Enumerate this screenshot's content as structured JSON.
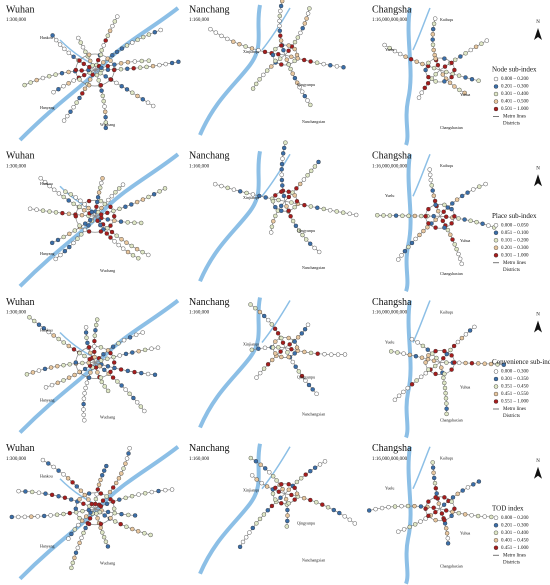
{
  "north": "N",
  "rows": [
    {
      "legend": {
        "title": "Node sub-index",
        "items": [
          {
            "label": "0.000 – 0.200",
            "color": "#ffffff"
          },
          {
            "label": "0.201 – 0.300",
            "color": "#3b6ea8"
          },
          {
            "label": "0.301 – 0.400",
            "color": "#dfe7c6"
          },
          {
            "label": "0.401 – 0.500",
            "color": "#e8c79f"
          },
          {
            "label": "0.501 – 1.000",
            "color": "#a51d1d"
          }
        ],
        "metro": "Metro lines",
        "districts": "Districts"
      },
      "panels": [
        {
          "city": "Wuhan",
          "scale": "1:300,000",
          "districts": [
            "Hankou",
            "Hanyang",
            "Wuchang"
          ]
        },
        {
          "city": "Nanchang",
          "scale": "1:160,000",
          "districts": [
            "Xinjianqu",
            "Qingyunpu",
            "Nanchangxian"
          ]
        },
        {
          "city": "Changsha",
          "scale": "1:16,000,000,000",
          "districts": [
            "Kaifuqu",
            "Yuelu",
            "Yuhua",
            "Changshaxian"
          ]
        }
      ]
    },
    {
      "legend": {
        "title": "Place sub-index",
        "items": [
          {
            "label": "0.000 – 0.050",
            "color": "#ffffff"
          },
          {
            "label": "0.051 – 0.100",
            "color": "#3b6ea8"
          },
          {
            "label": "0.101 – 0.200",
            "color": "#dfe7c6"
          },
          {
            "label": "0.201 – 0.300",
            "color": "#e8c79f"
          },
          {
            "label": "0.301 – 1.000",
            "color": "#a51d1d"
          }
        ],
        "metro": "Metro lines",
        "districts": "Districts"
      },
      "panels": [
        {
          "city": "Wuhan",
          "scale": "1:300,000",
          "districts": [
            "Hankou",
            "Hanyang",
            "Wuchang"
          ]
        },
        {
          "city": "Nanchang",
          "scale": "1:160,000",
          "districts": [
            "Xinjianqu",
            "Qingyunpu",
            "Nanchangxian"
          ]
        },
        {
          "city": "Changsha",
          "scale": "1:16,000,000,000",
          "districts": [
            "Kaifuqu",
            "Yuelu",
            "Yuhua",
            "Changshaxian"
          ]
        }
      ]
    },
    {
      "legend": {
        "title": "Convenience sub-index",
        "items": [
          {
            "label": "0.000 – 0.300",
            "color": "#ffffff"
          },
          {
            "label": "0.301 – 0.350",
            "color": "#3b6ea8"
          },
          {
            "label": "0.351 – 0.450",
            "color": "#dfe7c6"
          },
          {
            "label": "0.451 – 0.550",
            "color": "#e8c79f"
          },
          {
            "label": "0.551 – 1.000",
            "color": "#a51d1d"
          }
        ],
        "metro": "Metro lines",
        "districts": "Districts"
      },
      "panels": [
        {
          "city": "Wuhan",
          "scale": "1:300,000",
          "districts": [
            "Hankou",
            "Hanyang",
            "Wuchang"
          ]
        },
        {
          "city": "Nanchang",
          "scale": "1:160,000",
          "districts": [
            "Xinjianqu",
            "Qingyunpu",
            "Nanchangxian"
          ]
        },
        {
          "city": "Changsha",
          "scale": "1:16,000,000,000",
          "districts": [
            "Kaifuqu",
            "Yuelu",
            "Yuhua",
            "Changshaxian"
          ]
        }
      ]
    },
    {
      "legend": {
        "title": "TOD index",
        "items": [
          {
            "label": "0.000 – 0.200",
            "color": "#ffffff"
          },
          {
            "label": "0.201 – 0.300",
            "color": "#3b6ea8"
          },
          {
            "label": "0.301 – 0.400",
            "color": "#dfe7c6"
          },
          {
            "label": "0.401 – 0.450",
            "color": "#e8c79f"
          },
          {
            "label": "0.451 – 1.000",
            "color": "#a51d1d"
          }
        ],
        "metro": "Metro lines",
        "districts": "Districts"
      },
      "panels": [
        {
          "city": "Wuhan",
          "scale": "1:300,000",
          "districts": [
            "Hankou",
            "Hanyang",
            "Wuchang"
          ]
        },
        {
          "city": "Nanchang",
          "scale": "1:160,000",
          "districts": [
            "Xinjianqu",
            "Qingyunpu",
            "Nanchangxian"
          ]
        },
        {
          "city": "Changsha",
          "scale": "1:16,000,000,000",
          "districts": [
            "Kaifuqu",
            "Yuelu",
            "Yuhua",
            "Changshaxian"
          ]
        }
      ]
    }
  ]
}
